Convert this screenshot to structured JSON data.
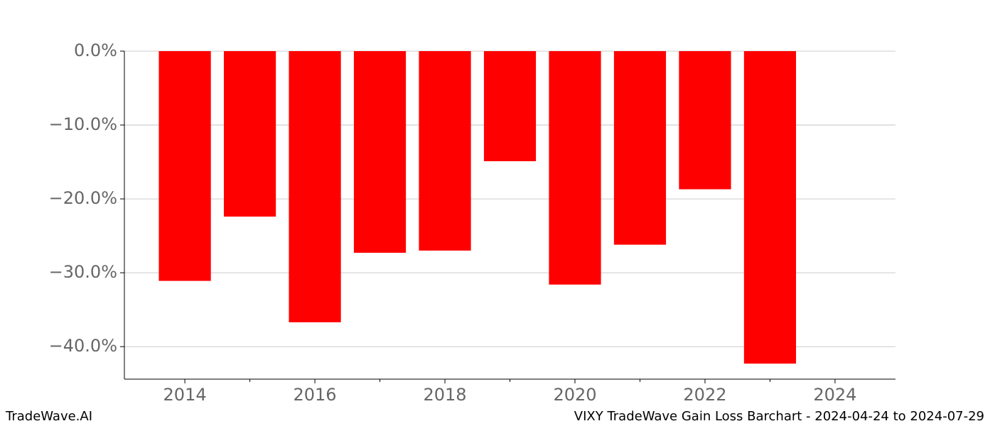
{
  "chart_data": {
    "type": "bar",
    "title": "VIXY TradeWave Gain Loss Barchart - 2024-04-24 to 2024-07-29",
    "watermark": "TradeWave.AI",
    "x": [
      2014,
      2015,
      2016,
      2017,
      2018,
      2019,
      2020,
      2021,
      2022,
      2023
    ],
    "values": [
      -31.1,
      -22.4,
      -36.7,
      -27.3,
      -27.0,
      -14.9,
      -31.6,
      -26.2,
      -18.7,
      -42.3
    ],
    "color": "#ff0000",
    "bar_width": 0.8,
    "xlim": [
      2013.07,
      2024.93
    ],
    "xticks": [
      2014,
      2016,
      2018,
      2020,
      2022,
      2024
    ],
    "xminorticks": [
      2015,
      2017,
      2019,
      2021,
      2023
    ],
    "ylim": [
      -44.4,
      0
    ],
    "yticks": [
      {
        "value": 0,
        "label": "0.0%"
      },
      {
        "value": -10,
        "label": "−10.0%"
      },
      {
        "value": -20,
        "label": "−20.0%"
      },
      {
        "value": -30,
        "label": "−30.0%"
      },
      {
        "value": -40,
        "label": "−40.0%"
      }
    ],
    "grid": true
  }
}
